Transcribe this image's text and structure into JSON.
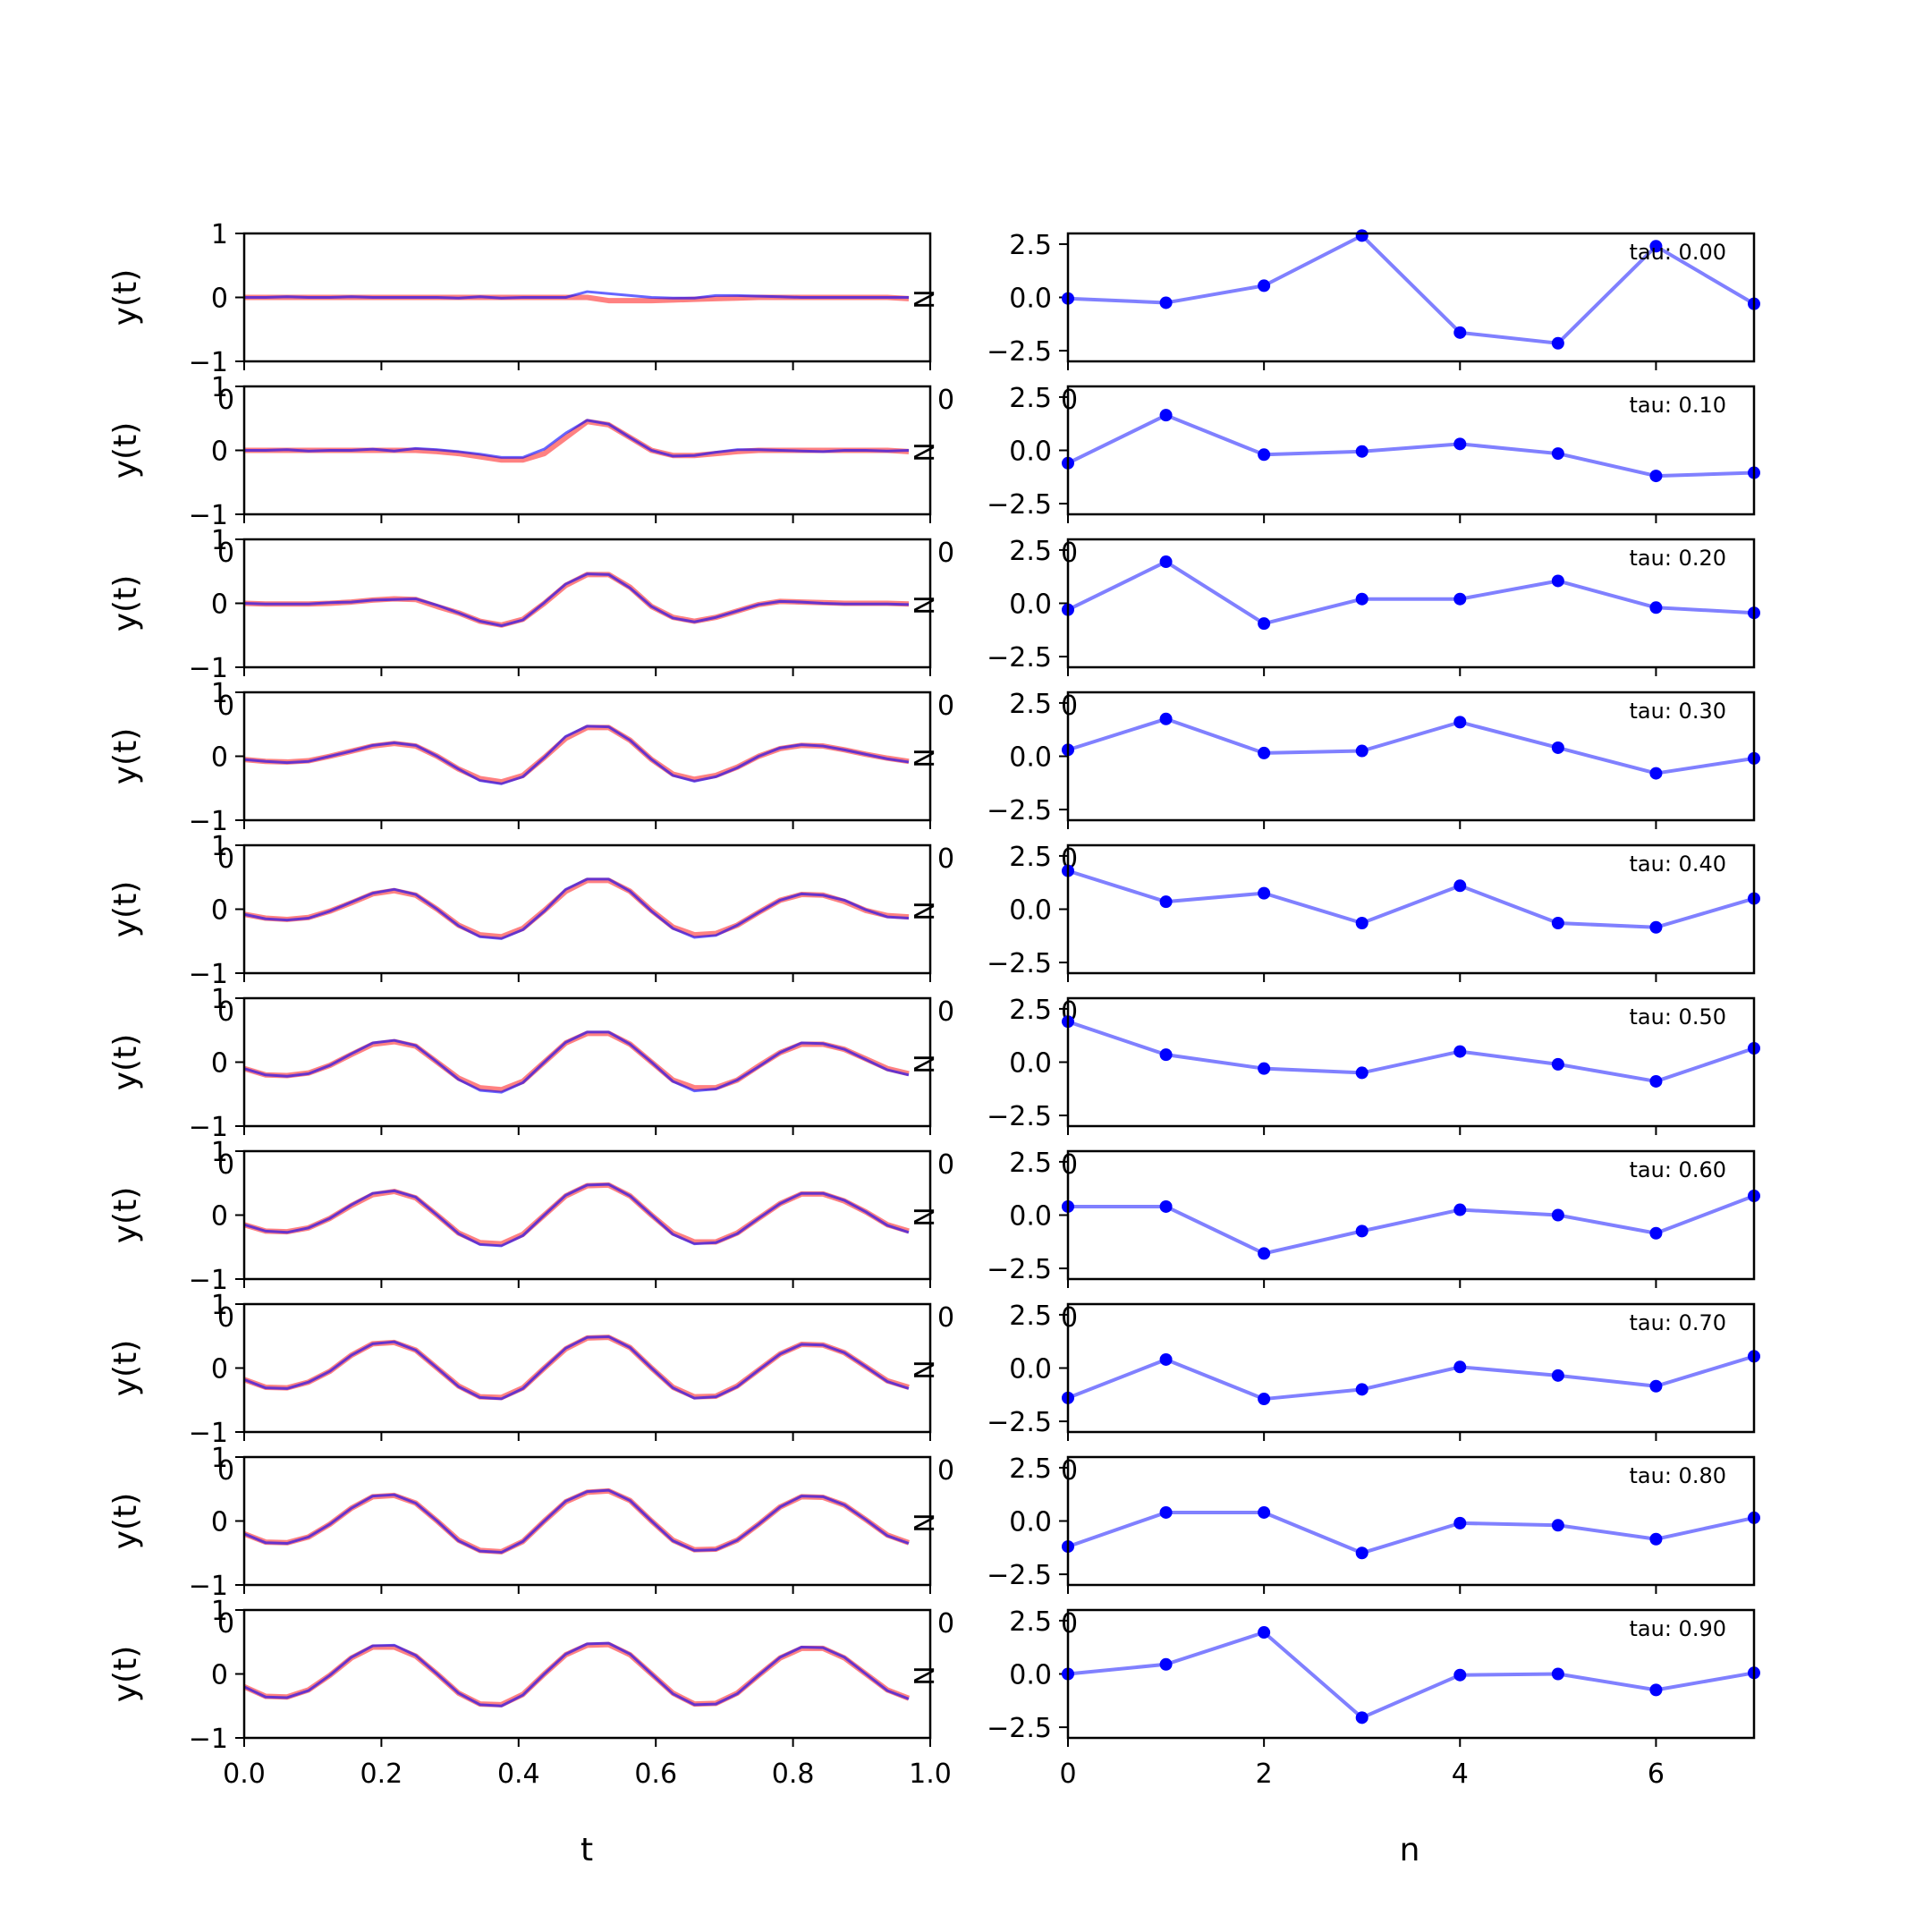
{
  "colors": {
    "true_series": "#ff6b6b",
    "pred_series": "#0000ff",
    "coef_line": "#8080ff",
    "coef_marker": "#0000ff",
    "axes": "#000000"
  },
  "chart_data": [
    {
      "type": "line",
      "panel": "left",
      "t_grid": [
        0.0,
        0.03125,
        0.0625,
        0.09375,
        0.125,
        0.15625,
        0.1875,
        0.21875,
        0.25,
        0.28125,
        0.3125,
        0.34375,
        0.375,
        0.40625,
        0.4375,
        0.46875,
        0.5,
        0.53125,
        0.5625,
        0.59375,
        0.625,
        0.65625,
        0.6875,
        0.71875,
        0.75,
        0.78125,
        0.8125,
        0.84375,
        0.875,
        0.90625,
        0.9375,
        0.96875
      ],
      "xlabel": "t",
      "ylabel": "y(t)",
      "xlim": [
        0.0,
        1.0
      ],
      "ylim": [
        -1,
        1
      ],
      "xticks": [
        "0.0",
        "0.2",
        "0.4",
        "0.6",
        "0.8",
        "1.0"
      ],
      "yticks": [
        "−1",
        "0",
        "1"
      ],
      "overlap_ticks": [
        "0",
        "0"
      ],
      "right_marker": "N",
      "rows": [
        {
          "true": [
            0.0,
            0.0,
            0.0,
            0.0,
            0.0,
            0.0,
            0.0,
            0.0,
            0.0,
            0.0,
            0.0,
            0.0,
            0.0,
            0.0,
            0.0,
            0.0,
            0.0,
            -0.05,
            -0.05,
            -0.05,
            -0.04,
            -0.03,
            -0.02,
            -0.01,
            0.0,
            0.0,
            0.0,
            0.0,
            0.0,
            0.0,
            0.0,
            -0.02
          ],
          "pred": [
            0.0,
            0.0,
            0.01,
            0.0,
            0.0,
            0.01,
            0.0,
            0.0,
            0.0,
            0.0,
            -0.01,
            0.01,
            -0.01,
            0.0,
            0.0,
            0.0,
            0.09,
            0.06,
            0.03,
            0.0,
            -0.01,
            -0.01,
            0.03,
            0.03,
            0.02,
            0.01,
            0.0,
            0.0,
            0.0,
            0.0,
            0.0,
            0.0
          ]
        },
        {
          "true": [
            0.0,
            0.0,
            0.0,
            0.0,
            0.0,
            0.0,
            0.0,
            0.0,
            0.0,
            -0.02,
            -0.05,
            -0.1,
            -0.15,
            -0.15,
            -0.05,
            0.2,
            0.45,
            0.4,
            0.2,
            0.0,
            -0.08,
            -0.08,
            -0.05,
            -0.02,
            0.0,
            0.0,
            0.0,
            0.0,
            0.0,
            0.0,
            0.0,
            -0.02
          ],
          "pred": [
            0.0,
            0.0,
            0.01,
            -0.01,
            0.0,
            0.0,
            0.02,
            -0.01,
            0.03,
            0.01,
            -0.02,
            -0.06,
            -0.11,
            -0.11,
            0.02,
            0.27,
            0.47,
            0.41,
            0.2,
            0.0,
            -0.09,
            -0.08,
            -0.03,
            0.01,
            0.01,
            0.0,
            -0.01,
            -0.02,
            0.0,
            0.0,
            -0.01,
            0.0
          ]
        },
        {
          "true": [
            0.0,
            -0.01,
            -0.01,
            -0.01,
            0.0,
            0.02,
            0.05,
            0.07,
            0.06,
            -0.05,
            -0.15,
            -0.28,
            -0.34,
            -0.25,
            0.0,
            0.28,
            0.45,
            0.45,
            0.25,
            -0.05,
            -0.22,
            -0.28,
            -0.22,
            -0.12,
            -0.02,
            0.03,
            0.02,
            0.01,
            0.0,
            0.0,
            0.0,
            -0.01
          ],
          "pred": [
            0.0,
            -0.01,
            -0.01,
            -0.01,
            0.01,
            0.02,
            0.05,
            0.06,
            0.07,
            -0.03,
            -0.15,
            -0.28,
            -0.35,
            -0.26,
            0.01,
            0.3,
            0.46,
            0.45,
            0.24,
            -0.05,
            -0.23,
            -0.29,
            -0.22,
            -0.12,
            -0.02,
            0.03,
            0.02,
            0.0,
            -0.01,
            -0.01,
            -0.01,
            -0.02
          ]
        },
        {
          "true": [
            -0.05,
            -0.08,
            -0.09,
            -0.07,
            0.0,
            0.08,
            0.16,
            0.2,
            0.16,
            0.0,
            -0.2,
            -0.35,
            -0.4,
            -0.3,
            -0.02,
            0.28,
            0.45,
            0.45,
            0.25,
            -0.05,
            -0.28,
            -0.36,
            -0.3,
            -0.17,
            0.0,
            0.12,
            0.17,
            0.16,
            0.1,
            0.03,
            -0.03,
            -0.08
          ],
          "pred": [
            -0.05,
            -0.08,
            -0.1,
            -0.08,
            0.0,
            0.08,
            0.17,
            0.21,
            0.17,
            0.0,
            -0.2,
            -0.38,
            -0.43,
            -0.32,
            -0.02,
            0.31,
            0.47,
            0.46,
            0.25,
            -0.05,
            -0.3,
            -0.39,
            -0.32,
            -0.18,
            0.0,
            0.13,
            0.18,
            0.16,
            0.1,
            0.03,
            -0.04,
            -0.09
          ]
        },
        {
          "true": [
            -0.08,
            -0.14,
            -0.16,
            -0.13,
            -0.03,
            0.1,
            0.24,
            0.29,
            0.22,
            0.0,
            -0.25,
            -0.4,
            -0.43,
            -0.3,
            -0.02,
            0.28,
            0.45,
            0.45,
            0.28,
            -0.02,
            -0.28,
            -0.4,
            -0.38,
            -0.25,
            -0.05,
            0.14,
            0.23,
            0.22,
            0.12,
            -0.02,
            -0.1,
            -0.12
          ],
          "pred": [
            -0.08,
            -0.15,
            -0.17,
            -0.14,
            -0.03,
            0.11,
            0.25,
            0.31,
            0.23,
            0.0,
            -0.26,
            -0.43,
            -0.46,
            -0.32,
            -0.03,
            0.31,
            0.47,
            0.47,
            0.28,
            -0.03,
            -0.3,
            -0.44,
            -0.41,
            -0.25,
            -0.05,
            0.14,
            0.24,
            0.22,
            0.14,
            -0.01,
            -0.12,
            -0.14
          ]
        },
        {
          "true": [
            -0.1,
            -0.2,
            -0.21,
            -0.17,
            -0.05,
            0.12,
            0.28,
            0.32,
            0.25,
            0.0,
            -0.25,
            -0.4,
            -0.43,
            -0.3,
            0.0,
            0.3,
            0.45,
            0.45,
            0.28,
            0.0,
            -0.28,
            -0.4,
            -0.4,
            -0.28,
            -0.06,
            0.15,
            0.28,
            0.28,
            0.2,
            0.05,
            -0.1,
            -0.18
          ],
          "pred": [
            -0.1,
            -0.2,
            -0.22,
            -0.18,
            -0.05,
            0.13,
            0.3,
            0.34,
            0.26,
            0.0,
            -0.27,
            -0.44,
            -0.47,
            -0.32,
            0.0,
            0.31,
            0.47,
            0.47,
            0.28,
            0.0,
            -0.3,
            -0.45,
            -0.42,
            -0.28,
            -0.07,
            0.15,
            0.3,
            0.29,
            0.2,
            0.04,
            -0.12,
            -0.2
          ]
        },
        {
          "true": [
            -0.15,
            -0.25,
            -0.26,
            -0.2,
            -0.05,
            0.15,
            0.32,
            0.37,
            0.27,
            0.0,
            -0.28,
            -0.43,
            -0.45,
            -0.3,
            0.0,
            0.3,
            0.46,
            0.47,
            0.3,
            0.0,
            -0.28,
            -0.42,
            -0.42,
            -0.28,
            -0.05,
            0.18,
            0.33,
            0.33,
            0.22,
            0.05,
            -0.15,
            -0.25
          ],
          "pred": [
            -0.15,
            -0.25,
            -0.27,
            -0.2,
            -0.05,
            0.16,
            0.34,
            0.38,
            0.28,
            0.0,
            -0.29,
            -0.46,
            -0.48,
            -0.32,
            0.0,
            0.31,
            0.47,
            0.48,
            0.3,
            0.0,
            -0.3,
            -0.45,
            -0.43,
            -0.29,
            -0.05,
            0.18,
            0.34,
            0.34,
            0.23,
            0.05,
            -0.16,
            -0.27
          ]
        },
        {
          "true": [
            -0.18,
            -0.3,
            -0.31,
            -0.22,
            -0.05,
            0.2,
            0.38,
            0.4,
            0.28,
            0.0,
            -0.28,
            -0.45,
            -0.46,
            -0.31,
            0.0,
            0.3,
            0.47,
            0.48,
            0.32,
            0.0,
            -0.3,
            -0.45,
            -0.44,
            -0.28,
            -0.03,
            0.22,
            0.37,
            0.36,
            0.24,
            0.02,
            -0.2,
            -0.3
          ],
          "pred": [
            -0.18,
            -0.31,
            -0.32,
            -0.22,
            -0.05,
            0.2,
            0.38,
            0.41,
            0.28,
            0.0,
            -0.29,
            -0.46,
            -0.48,
            -0.32,
            0.0,
            0.31,
            0.48,
            0.49,
            0.32,
            0.0,
            -0.31,
            -0.47,
            -0.45,
            -0.29,
            -0.03,
            0.22,
            0.37,
            0.36,
            0.24,
            0.02,
            -0.21,
            -0.32
          ]
        },
        {
          "true": [
            -0.2,
            -0.33,
            -0.34,
            -0.25,
            -0.05,
            0.2,
            0.38,
            0.4,
            0.28,
            0.0,
            -0.3,
            -0.46,
            -0.48,
            -0.32,
            0.0,
            0.3,
            0.45,
            0.47,
            0.32,
            0.0,
            -0.3,
            -0.45,
            -0.44,
            -0.3,
            -0.05,
            0.22,
            0.38,
            0.37,
            0.25,
            0.02,
            -0.22,
            -0.34
          ],
          "pred": [
            -0.2,
            -0.34,
            -0.35,
            -0.25,
            -0.05,
            0.2,
            0.39,
            0.41,
            0.28,
            0.0,
            -0.31,
            -0.47,
            -0.49,
            -0.32,
            0.0,
            0.31,
            0.46,
            0.48,
            0.32,
            0.0,
            -0.31,
            -0.46,
            -0.45,
            -0.3,
            -0.05,
            0.22,
            0.39,
            0.38,
            0.25,
            0.02,
            -0.23,
            -0.35
          ]
        },
        {
          "true": [
            -0.2,
            -0.35,
            -0.36,
            -0.25,
            -0.02,
            0.25,
            0.42,
            0.42,
            0.28,
            0.0,
            -0.3,
            -0.47,
            -0.48,
            -0.32,
            0.0,
            0.3,
            0.45,
            0.46,
            0.3,
            0.0,
            -0.3,
            -0.47,
            -0.46,
            -0.3,
            -0.02,
            0.25,
            0.4,
            0.4,
            0.25,
            0.0,
            -0.25,
            -0.38
          ],
          "pred": [
            -0.2,
            -0.36,
            -0.37,
            -0.26,
            -0.02,
            0.26,
            0.44,
            0.45,
            0.29,
            0.0,
            -0.3,
            -0.48,
            -0.5,
            -0.33,
            0.0,
            0.31,
            0.47,
            0.48,
            0.31,
            0.0,
            -0.31,
            -0.48,
            -0.47,
            -0.31,
            -0.02,
            0.26,
            0.42,
            0.41,
            0.26,
            0.0,
            -0.26,
            -0.39
          ]
        }
      ]
    },
    {
      "type": "line",
      "panel": "right",
      "x": [
        0,
        1,
        2,
        3,
        4,
        5,
        6,
        7
      ],
      "xlabel": "n",
      "xlim": [
        0,
        7
      ],
      "ylim": [
        -3,
        3
      ],
      "xticks": [
        "0",
        "2",
        "4",
        "6"
      ],
      "yticks": [
        "2.5",
        "0.0",
        "−2.5"
      ],
      "overlap_ticks": [
        "0"
      ],
      "rows": [
        {
          "tau": "tau: 0.00",
          "values": [
            -0.05,
            -0.25,
            0.55,
            2.9,
            -1.65,
            -2.15,
            2.4,
            -0.3
          ]
        },
        {
          "tau": "tau: 0.10",
          "values": [
            -0.6,
            1.65,
            -0.2,
            -0.05,
            0.3,
            -0.15,
            -1.2,
            -1.05
          ]
        },
        {
          "tau": "tau: 0.20",
          "values": [
            -0.3,
            1.95,
            -0.95,
            0.2,
            0.2,
            1.05,
            -0.2,
            -0.45
          ]
        },
        {
          "tau": "tau: 0.30",
          "values": [
            0.3,
            1.75,
            0.15,
            0.25,
            1.6,
            0.4,
            -0.8,
            -0.1
          ]
        },
        {
          "tau": "tau: 0.40",
          "values": [
            1.8,
            0.35,
            0.75,
            -0.65,
            1.1,
            -0.65,
            -0.85,
            0.5
          ]
        },
        {
          "tau": "tau: 0.50",
          "values": [
            1.9,
            0.35,
            -0.3,
            -0.5,
            0.5,
            -0.1,
            -0.9,
            0.65
          ]
        },
        {
          "tau": "tau: 0.60",
          "values": [
            0.4,
            0.4,
            -1.8,
            -0.75,
            0.25,
            0.0,
            -0.85,
            0.9
          ]
        },
        {
          "tau": "tau: 0.70",
          "values": [
            -1.4,
            0.4,
            -1.45,
            -1.0,
            0.05,
            -0.35,
            -0.85,
            0.55
          ]
        },
        {
          "tau": "tau: 0.80",
          "values": [
            -1.2,
            0.4,
            0.4,
            -1.5,
            -0.1,
            -0.2,
            -0.85,
            0.15
          ]
        },
        {
          "tau": "tau: 0.90",
          "values": [
            0.0,
            0.45,
            1.95,
            -2.05,
            -0.05,
            0.0,
            -0.75,
            0.05
          ]
        }
      ]
    }
  ]
}
